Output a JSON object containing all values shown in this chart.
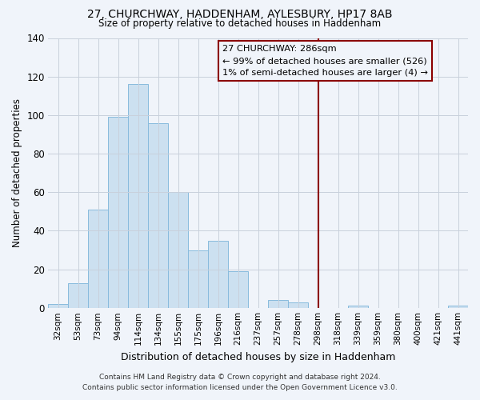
{
  "title": "27, CHURCHWAY, HADDENHAM, AYLESBURY, HP17 8AB",
  "subtitle": "Size of property relative to detached houses in Haddenham",
  "xlabel": "Distribution of detached houses by size in Haddenham",
  "ylabel": "Number of detached properties",
  "bar_labels": [
    "32sqm",
    "53sqm",
    "73sqm",
    "94sqm",
    "114sqm",
    "134sqm",
    "155sqm",
    "175sqm",
    "196sqm",
    "216sqm",
    "237sqm",
    "257sqm",
    "278sqm",
    "298sqm",
    "318sqm",
    "339sqm",
    "359sqm",
    "380sqm",
    "400sqm",
    "421sqm",
    "441sqm"
  ],
  "bar_values": [
    2,
    13,
    51,
    99,
    116,
    96,
    60,
    30,
    35,
    19,
    0,
    4,
    3,
    0,
    0,
    1,
    0,
    0,
    0,
    0,
    1
  ],
  "bar_color": "#cce0f0",
  "bar_edge_color": "#88bbdd",
  "ylim": [
    0,
    140
  ],
  "yticks": [
    0,
    20,
    40,
    60,
    80,
    100,
    120,
    140
  ],
  "vline_x_index": 13.0,
  "vline_color": "#8b0000",
  "annotation_title": "27 CHURCHWAY: 286sqm",
  "annotation_line1": "← 99% of detached houses are smaller (526)",
  "annotation_line2": "1% of semi-detached houses are larger (4) →",
  "footer_line1": "Contains HM Land Registry data © Crown copyright and database right 2024.",
  "footer_line2": "Contains public sector information licensed under the Open Government Licence v3.0.",
  "background_color": "#f0f4fa",
  "grid_color": "#c8d0dc"
}
